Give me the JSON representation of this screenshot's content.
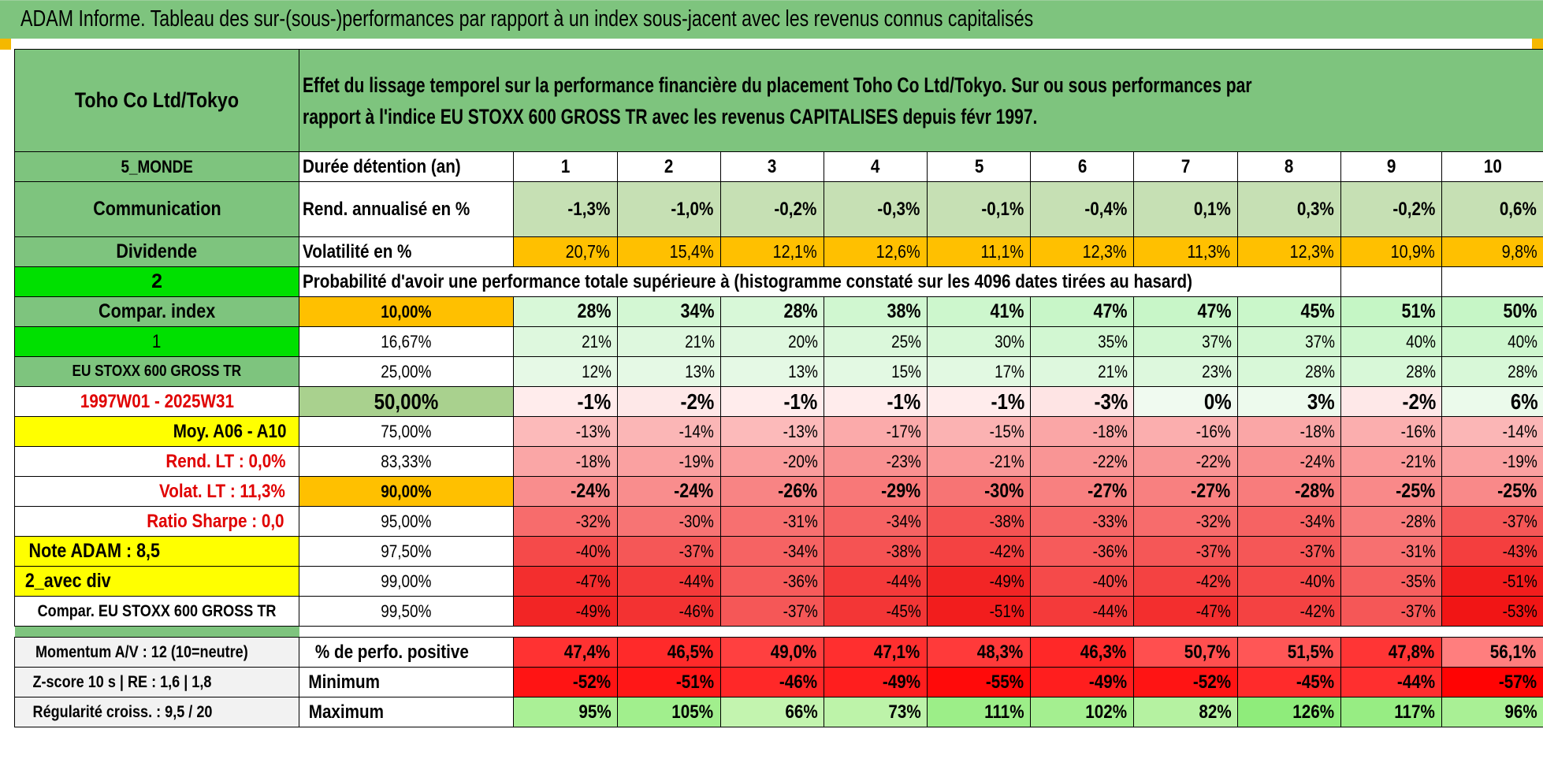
{
  "title": "ADAM Informe. Tableau des sur-(sous-)performances par rapport à un index sous-jacent avec les revenus connus capitalisés",
  "header": {
    "stock": "Toho Co Ltd/Tokyo",
    "description": "Effet du lissage temporel sur la performance financière du placement Toho Co Ltd/Tokyo. Sur ou sous performances par rapport à l'indice EU STOXX 600 GROSS TR avec les revenus CAPITALISES depuis févr 1997."
  },
  "left_labels": {
    "region": "5_MONDE",
    "sector": "Communication",
    "dividend": "Dividende",
    "two": "2",
    "compar_index": "Compar. index",
    "one": "1",
    "index_name": "EU STOXX 600 GROSS TR",
    "period": "1997W01 - 2025W31",
    "moy": "Moy. A06 - A10",
    "rend_lt": "Rend. LT :    0,0%",
    "volat_lt": "Volat. LT :    11,3%",
    "sharpe": "Ratio Sharpe :    0,0",
    "note": "Note ADAM : 8,5",
    "avec_div": "2_avec div",
    "compar_full": "Compar. EU STOXX 600 GROSS TR"
  },
  "durations_label": "Durée détention (an)",
  "years": [
    "1",
    "2",
    "3",
    "4",
    "5",
    "6",
    "7",
    "8",
    "9",
    "10"
  ],
  "rend_label": "Rend. annualisé en %",
  "rend": [
    "-1,3%",
    "-1,0%",
    "-0,2%",
    "-0,3%",
    "-0,1%",
    "-0,4%",
    "0,1%",
    "0,3%",
    "-0,2%",
    "0,6%"
  ],
  "vol_label": "Volatilité en %",
  "vol": [
    "20,7%",
    "15,4%",
    "12,1%",
    "12,6%",
    "11,1%",
    "12,3%",
    "11,3%",
    "12,3%",
    "10,9%",
    "9,8%"
  ],
  "prob_label": "Probabilité d'avoir une performance totale supérieure à (histogramme constaté sur les 4096 dates tirées au hasard)",
  "quantile_rows": [
    {
      "pct": "10,00%",
      "vals": [
        "28%",
        "34%",
        "28%",
        "38%",
        "41%",
        "47%",
        "47%",
        "45%",
        "51%",
        "50%"
      ]
    },
    {
      "pct": "16,67%",
      "vals": [
        "21%",
        "21%",
        "20%",
        "25%",
        "30%",
        "35%",
        "37%",
        "37%",
        "40%",
        "40%"
      ]
    },
    {
      "pct": "25,00%",
      "vals": [
        "12%",
        "13%",
        "13%",
        "15%",
        "17%",
        "21%",
        "23%",
        "28%",
        "28%",
        "28%"
      ]
    },
    {
      "pct": "50,00%",
      "vals": [
        "-1%",
        "-2%",
        "-1%",
        "-1%",
        "-1%",
        "-3%",
        "0%",
        "3%",
        "-2%",
        "6%"
      ]
    },
    {
      "pct": "75,00%",
      "vals": [
        "-13%",
        "-14%",
        "-13%",
        "-17%",
        "-15%",
        "-18%",
        "-16%",
        "-18%",
        "-16%",
        "-14%"
      ]
    },
    {
      "pct": "83,33%",
      "vals": [
        "-18%",
        "-19%",
        "-20%",
        "-23%",
        "-21%",
        "-22%",
        "-22%",
        "-24%",
        "-21%",
        "-19%"
      ]
    },
    {
      "pct": "90,00%",
      "vals": [
        "-24%",
        "-24%",
        "-26%",
        "-29%",
        "-30%",
        "-27%",
        "-27%",
        "-28%",
        "-25%",
        "-25%"
      ]
    },
    {
      "pct": "95,00%",
      "vals": [
        "-32%",
        "-30%",
        "-31%",
        "-34%",
        "-38%",
        "-33%",
        "-32%",
        "-34%",
        "-28%",
        "-37%"
      ]
    },
    {
      "pct": "97,50%",
      "vals": [
        "-40%",
        "-37%",
        "-34%",
        "-38%",
        "-42%",
        "-36%",
        "-37%",
        "-37%",
        "-31%",
        "-43%"
      ]
    },
    {
      "pct": "99,00%",
      "vals": [
        "-47%",
        "-44%",
        "-36%",
        "-44%",
        "-49%",
        "-40%",
        "-42%",
        "-40%",
        "-35%",
        "-51%"
      ]
    },
    {
      "pct": "99,50%",
      "vals": [
        "-49%",
        "-46%",
        "-37%",
        "-45%",
        "-51%",
        "-44%",
        "-47%",
        "-42%",
        "-37%",
        "-53%"
      ]
    }
  ],
  "bottom": {
    "momentum": "Momentum A/V : 12 (10=neutre)",
    "zscore": "Z-score 10 s | RE : 1,6 | 1,8",
    "regularite": "Régularité croiss. : 9,5 / 20",
    "pos_label": "% de perfo. positive",
    "pos": [
      "47,4%",
      "46,5%",
      "49,0%",
      "47,1%",
      "48,3%",
      "46,3%",
      "50,7%",
      "51,5%",
      "47,8%",
      "56,1%"
    ],
    "min_label": "Minimum",
    "min": [
      "-52%",
      "-51%",
      "-46%",
      "-49%",
      "-55%",
      "-49%",
      "-52%",
      "-45%",
      "-44%",
      "-57%"
    ],
    "max_label": "Maximum",
    "max": [
      "95%",
      "105%",
      "66%",
      "73%",
      "111%",
      "102%",
      "82%",
      "126%",
      "117%",
      "96%"
    ]
  }
}
